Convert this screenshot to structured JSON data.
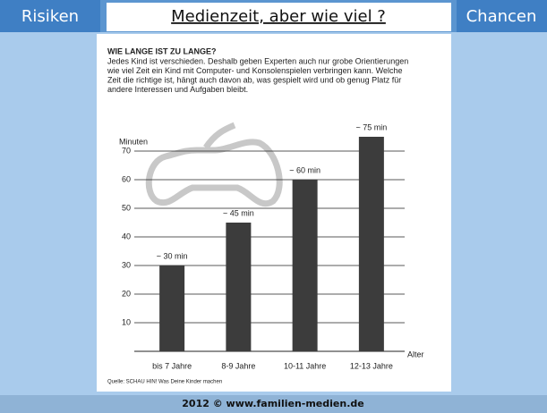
{
  "header": {
    "left": "Risiken",
    "title": "Medienzeit, aber wie viel ?",
    "right": "Chancen"
  },
  "footer": "2012 © www.familien-medien.de",
  "chart_data": {
    "type": "bar",
    "title": "WIE LANGE IST ZU LANGE?",
    "subtitle": [
      "Jedes Kind ist verschieden. Deshalb geben Experten auch nur grobe Orientierungen",
      "wie viel Zeit ein Kind mit Computer- und Konsolenspielen verbringen kann. Welche",
      "Zeit die richtige ist, hängt auch davon ab, was gespielt wird und ob genug Platz für",
      "andere Interessen und Aufgaben bleibt."
    ],
    "y_label": "Minuten",
    "x_label": "Alter",
    "source": "Quelle: SCHAU HIN! Was Deine Kinder machen",
    "categories": [
      "bis 7 Jahre",
      "8-9 Jahre",
      "10-11 Jahre",
      "12-13 Jahre"
    ],
    "values": [
      30,
      45,
      60,
      75
    ],
    "value_labels": [
      "~ 30 min",
      "~ 45 min",
      "~ 60 min",
      "~ 75 min"
    ],
    "color": "#3c3c3c",
    "ylim": [
      0,
      80
    ],
    "yticks": [
      10,
      20,
      30,
      40,
      50,
      60,
      70
    ],
    "grid": true
  }
}
